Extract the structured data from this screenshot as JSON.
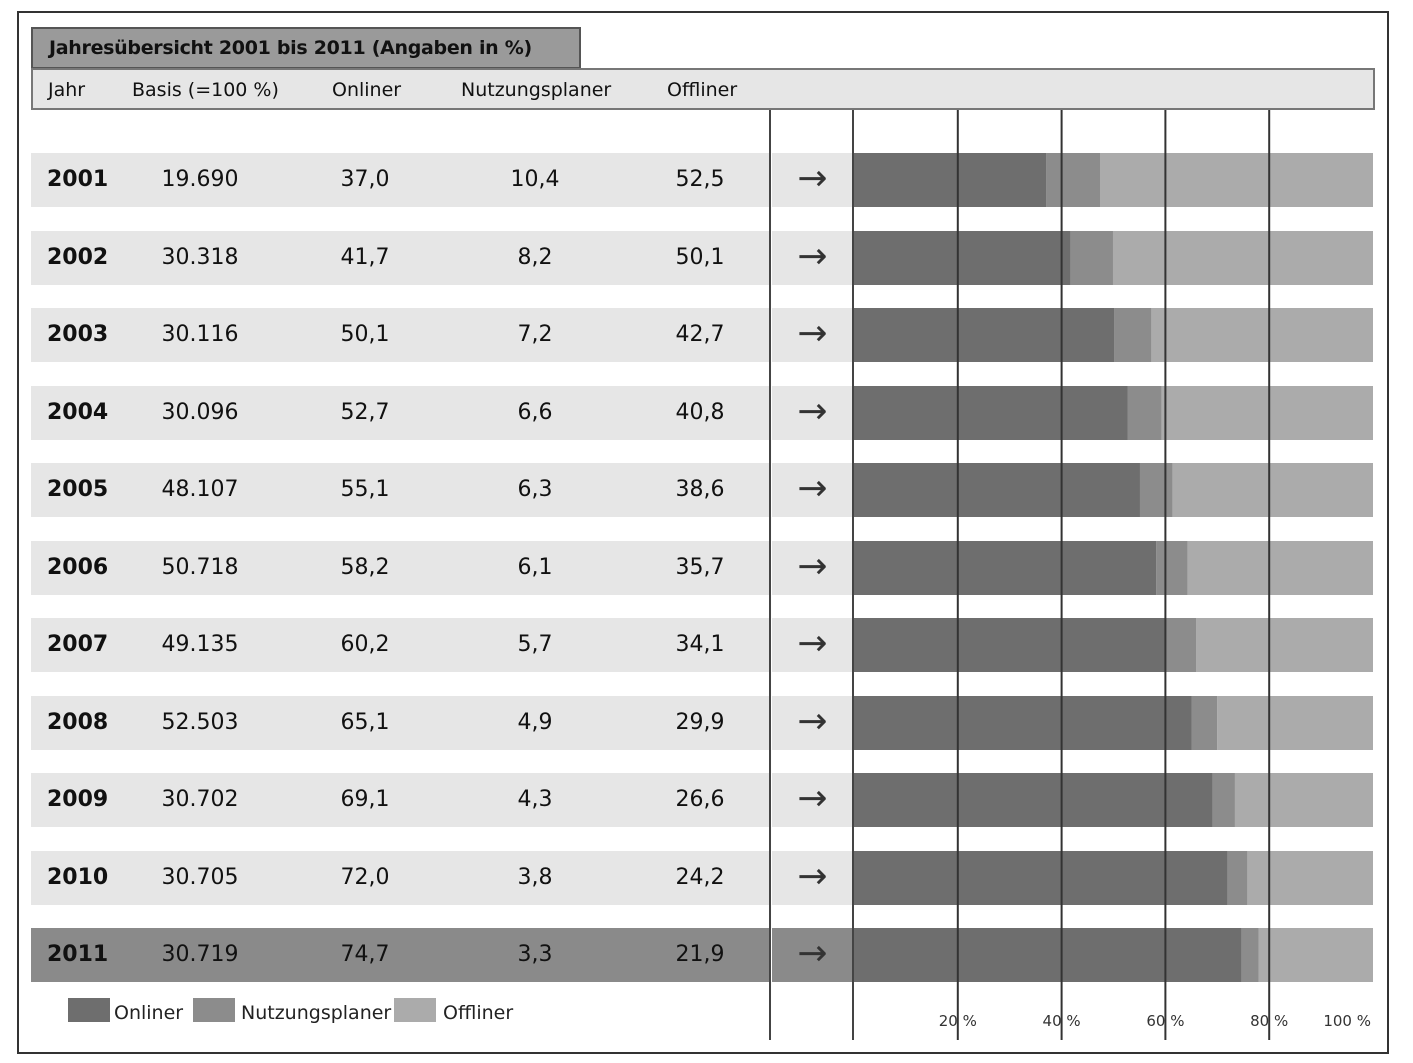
{
  "title": "Jahresübersicht 2001 bis 2011 (Angaben in %)",
  "headers": {
    "jahr": "Jahr",
    "basis": "Basis (=100 %)",
    "onliner": "Onliner",
    "nutzungsplaner": "Nutzungsplaner",
    "offliner": "Offliner"
  },
  "arrow_symbol": "→",
  "rows": [
    {
      "jahr": "2001",
      "basis": "19.690",
      "onliner": "37,0",
      "nutzungsplaner": "10,4",
      "offliner": "52,5"
    },
    {
      "jahr": "2002",
      "basis": "30.318",
      "onliner": "41,7",
      "nutzungsplaner": "8,2",
      "offliner": "50,1"
    },
    {
      "jahr": "2003",
      "basis": "30.116",
      "onliner": "50,1",
      "nutzungsplaner": "7,2",
      "offliner": "42,7"
    },
    {
      "jahr": "2004",
      "basis": "30.096",
      "onliner": "52,7",
      "nutzungsplaner": "6,6",
      "offliner": "40,8"
    },
    {
      "jahr": "2005",
      "basis": "48.107",
      "onliner": "55,1",
      "nutzungsplaner": "6,3",
      "offliner": "38,6"
    },
    {
      "jahr": "2006",
      "basis": "50.718",
      "onliner": "58,2",
      "nutzungsplaner": "6,1",
      "offliner": "35,7"
    },
    {
      "jahr": "2007",
      "basis": "49.135",
      "onliner": "60,2",
      "nutzungsplaner": "5,7",
      "offliner": "34,1"
    },
    {
      "jahr": "2008",
      "basis": "52.503",
      "onliner": "65,1",
      "nutzungsplaner": "4,9",
      "offliner": "29,9"
    },
    {
      "jahr": "2009",
      "basis": "30.702",
      "onliner": "69,1",
      "nutzungsplaner": "4,3",
      "offliner": "26,6"
    },
    {
      "jahr": "2010",
      "basis": "30.705",
      "onliner": "72,0",
      "nutzungsplaner": "3,8",
      "offliner": "24,2"
    },
    {
      "jahr": "2011",
      "basis": "30.719",
      "onliner": "74,7",
      "nutzungsplaner": "3,3",
      "offliner": "21,9"
    }
  ],
  "legend": {
    "onliner": "Onliner",
    "nutzungsplaner": "Nutzungsplaner",
    "offliner": "Offliner"
  },
  "colors": {
    "onliner": "#6e6e6e",
    "nutzungsplaner": "#8c8c8c",
    "offliner": "#ababab",
    "row_band": "#e6e6e6",
    "highlight_band": "#8a8a8a"
  },
  "chart_data": {
    "type": "bar",
    "orientation": "horizontal",
    "stacked": true,
    "title": "Jahresübersicht 2001 bis 2011 (Angaben in %)",
    "categories": [
      "2001",
      "2002",
      "2003",
      "2004",
      "2005",
      "2006",
      "2007",
      "2008",
      "2009",
      "2010",
      "2011"
    ],
    "series": [
      {
        "name": "Onliner",
        "values": [
          37.0,
          41.7,
          50.1,
          52.7,
          55.1,
          58.2,
          60.2,
          65.1,
          69.1,
          72.0,
          74.7
        ]
      },
      {
        "name": "Nutzungsplaner",
        "values": [
          10.4,
          8.2,
          7.2,
          6.6,
          6.3,
          6.1,
          5.7,
          4.9,
          4.3,
          3.8,
          3.3
        ]
      },
      {
        "name": "Offliner",
        "values": [
          52.5,
          50.1,
          42.7,
          40.8,
          38.6,
          35.7,
          34.1,
          29.9,
          26.6,
          24.2,
          21.9
        ]
      }
    ],
    "xlim": [
      0,
      100
    ],
    "xticks": [
      20,
      40,
      60,
      80,
      100
    ],
    "xtick_labels": [
      "20 %",
      "40 %",
      "60 %",
      "80 %",
      "100 %"
    ],
    "grid": true,
    "legend_position": "bottom-left"
  }
}
